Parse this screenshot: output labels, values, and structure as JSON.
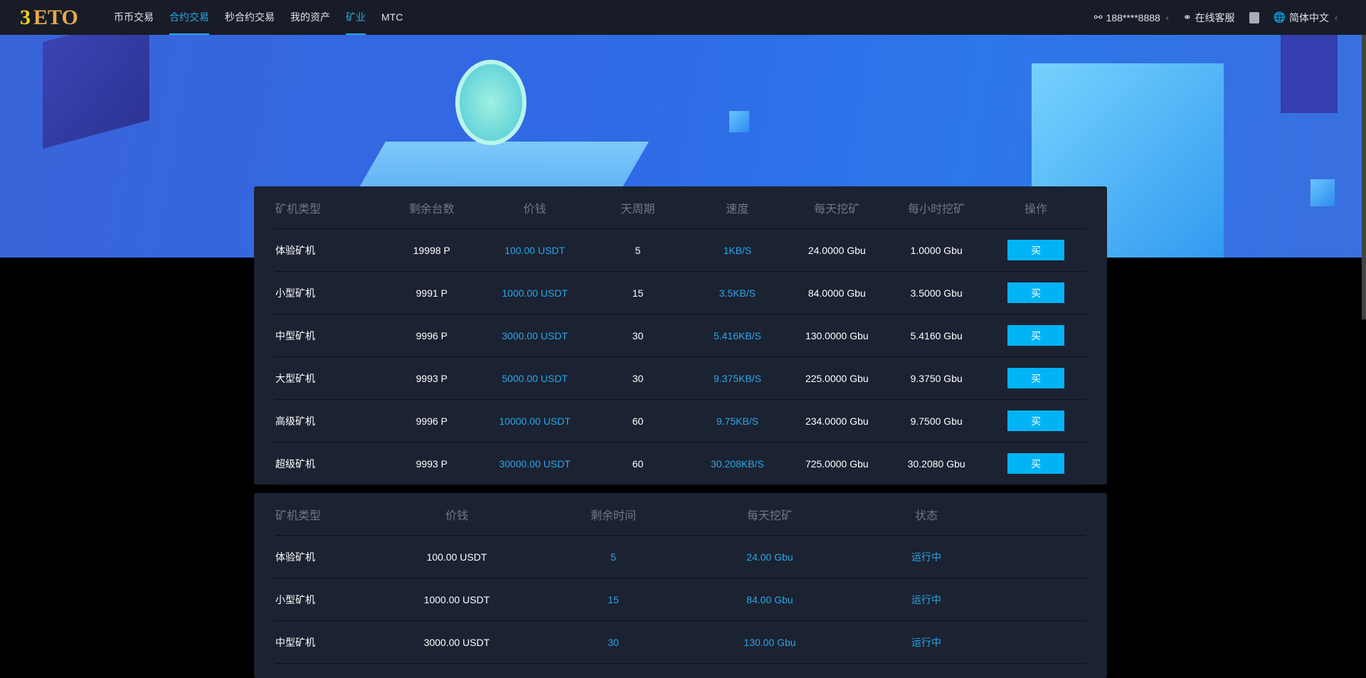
{
  "nav": {
    "logo_mark": "3",
    "logo_text": "ETO",
    "items": [
      {
        "label": "币币交易",
        "active": false
      },
      {
        "label": "合约交易",
        "active": true
      },
      {
        "label": "秒合约交易",
        "active": false
      },
      {
        "label": "我的资产",
        "active": false
      },
      {
        "label": "矿业",
        "active": true
      },
      {
        "label": "MTC",
        "active": false
      }
    ],
    "user": "188****8888",
    "support": "在线客服",
    "language": "简体中文"
  },
  "miners": {
    "headers": [
      "矿机类型",
      "剩余台数",
      "价钱",
      "天周期",
      "速度",
      "每天挖矿",
      "每小时挖矿",
      "操作"
    ],
    "rows": [
      [
        "体验矿机",
        "19998 P",
        "100.00 USDT",
        "5",
        "1KB/S",
        "24.0000 Gbu",
        "1.0000 Gbu",
        "买"
      ],
      [
        "小型矿机",
        "9991 P",
        "1000.00 USDT",
        "15",
        "3.5KB/S",
        "84.0000 Gbu",
        "3.5000 Gbu",
        "买"
      ],
      [
        "中型矿机",
        "9996 P",
        "3000.00 USDT",
        "30",
        "5.416KB/S",
        "130.0000 Gbu",
        "5.4160 Gbu",
        "买"
      ],
      [
        "大型矿机",
        "9993 P",
        "5000.00 USDT",
        "30",
        "9.375KB/S",
        "225.0000 Gbu",
        "9.3750 Gbu",
        "买"
      ],
      [
        "高级矿机",
        "9996 P",
        "10000.00 USDT",
        "60",
        "9.75KB/S",
        "234.0000 Gbu",
        "9.7500 Gbu",
        "买"
      ],
      [
        "超级矿机",
        "9993 P",
        "30000.00 USDT",
        "60",
        "30.208KB/S",
        "725.0000 Gbu",
        "30.2080 Gbu",
        "买"
      ]
    ]
  },
  "my_miners": {
    "headers": [
      "矿机类型",
      "价钱",
      "剩余时间",
      "每天挖矿",
      "状态"
    ],
    "rows": [
      [
        "体验矿机",
        "100.00 USDT",
        "5",
        "24.00 Gbu",
        "运行中"
      ],
      [
        "小型矿机",
        "1000.00 USDT",
        "15",
        "84.00 Gbu",
        "运行中"
      ],
      [
        "中型矿机",
        "3000.00 USDT",
        "30",
        "130.00 Gbu",
        "运行中"
      ]
    ]
  },
  "colors": {
    "accent": "#2aa7e8",
    "button": "#00b3f4",
    "panel": "#1b2232",
    "nav": "#171c26"
  }
}
